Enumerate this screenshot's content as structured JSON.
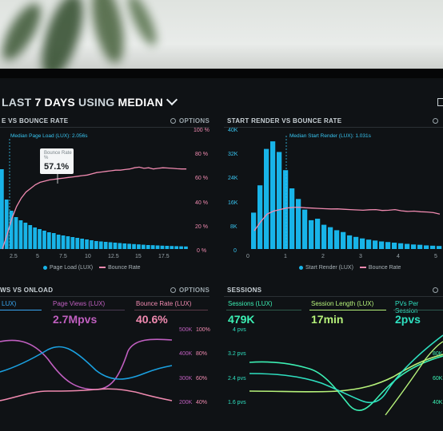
{
  "header": {
    "prefix": "LAST ",
    "days": "7 DAYS",
    "using": " USING ",
    "method": "MEDIAN"
  },
  "options_label": "OPTIONS",
  "panels": {
    "p1": {
      "title": "E VS BOUNCE RATE",
      "median_label": "Median Page Load (LUX): 2.056s",
      "tooltip": {
        "title": "Bounce Rate",
        "sub": "%",
        "value": "57.1%"
      },
      "legend_a": "Page Load (LUX)",
      "legend_b": "Bounce Rate",
      "right_ticks": [
        "100 %",
        "80 %",
        "60 %",
        "40 %",
        "20 %",
        "0 %"
      ],
      "x_ticks": [
        "2.5",
        "5",
        "7.5",
        "10",
        "12.5",
        "15",
        "17.5"
      ]
    },
    "p2": {
      "title": "START RENDER VS BOUNCE RATE",
      "median_label": "Median Start Render (LUX): 1.031s",
      "legend_a": "Start Render (LUX)",
      "legend_b": "Bounce Rate",
      "left_ticks": [
        "40K",
        "32K",
        "24K",
        "16K",
        "8K",
        "0"
      ],
      "x_ticks": [
        "0",
        "1",
        "2",
        "3",
        "4",
        "5"
      ]
    },
    "p3": {
      "title": "WS VS ONLOAD",
      "metrics": [
        {
          "label": "LUX)",
          "value": ""
        },
        {
          "label": "Page Views (LUX)",
          "value": "2.7Mpvs"
        },
        {
          "label": "Bounce Rate (LUX)",
          "value": "40.6%"
        }
      ],
      "left_ticks": [
        "500K",
        "400K",
        "300K",
        "200K"
      ],
      "right_ticks": [
        "100%",
        "80%",
        "60%",
        "40%"
      ]
    },
    "p4": {
      "title": "SESSIONS",
      "metrics": [
        {
          "label": "Sessions (LUX)",
          "value": "479K"
        },
        {
          "label": "Session Length (LUX)",
          "value": "17min"
        },
        {
          "label": "PVs Per Session",
          "value": "2pvs"
        }
      ],
      "left_ticks": [
        "4 pvs",
        "3.2 pvs",
        "2.4 pvs",
        "1.6 pvs"
      ],
      "right_ticks": [
        "80K",
        "60K",
        "40K"
      ]
    }
  },
  "colors": {
    "bar": "#18b4e8",
    "bounce": "#f08ab0",
    "purple": "#c05fc0",
    "green": "#3cf0b4",
    "lime": "#b6f27a",
    "teal": "#2ee0c0",
    "blue": "#1aa0e0"
  },
  "chart_data": [
    {
      "type": "bar",
      "title": "E VS BOUNCE RATE",
      "xlabel": "",
      "ylabel": "",
      "x_ticks": [
        2.5,
        5,
        7.5,
        10,
        12.5,
        15,
        17.5
      ],
      "series": [
        {
          "name": "Page Load (LUX)",
          "values": [
            100,
            62,
            48,
            40,
            36,
            33,
            30,
            27,
            25,
            23,
            21,
            20,
            18,
            17,
            16,
            15,
            14,
            13,
            12,
            11,
            10,
            9.5,
            9,
            8.5,
            8,
            7.5,
            7,
            6.6,
            6.2,
            5.8,
            5.4,
            5,
            4.8,
            4.5,
            4.2,
            4,
            3.8,
            3.6,
            3.4,
            3.2
          ]
        },
        {
          "name": "Bounce Rate",
          "values": [
            0,
            12,
            25,
            35,
            42,
            47,
            50,
            53,
            55,
            56,
            57,
            57.5,
            58,
            58.5,
            59,
            59.5,
            60,
            60.5,
            61,
            62,
            63,
            63.5,
            64,
            64.5,
            65,
            65,
            65.5,
            66,
            67,
            67.5,
            66.5,
            67,
            66,
            66.5,
            67,
            66.8,
            66.5,
            66.2,
            66,
            66
          ]
        }
      ],
      "ylim": [
        0,
        100
      ]
    },
    {
      "type": "bar",
      "title": "START RENDER VS BOUNCE RATE",
      "xlabel": "",
      "ylabel": "",
      "x_ticks": [
        0,
        1,
        2,
        3,
        4,
        5
      ],
      "ylim": [
        0,
        40000
      ],
      "series": [
        {
          "name": "Start Render (LUX)",
          "values": [
            12000,
            21000,
            33000,
            35500,
            32000,
            26000,
            20000,
            16500,
            13000,
            9500,
            10000,
            8000,
            7200,
            6200,
            5600,
            4500,
            4000,
            3500,
            3100,
            2800,
            2500,
            2300,
            2100,
            1900,
            1700,
            1500,
            1400,
            1200,
            1100,
            1000
          ]
        },
        {
          "name": "Bounce Rate",
          "values": [
            6000,
            9000,
            11500,
            12500,
            13000,
            13500,
            13700,
            13800,
            13600,
            13500,
            13400,
            13300,
            13200,
            13250,
            13100,
            13000,
            12900,
            12800,
            12950,
            13000,
            12700,
            12800,
            13000,
            12600,
            12400,
            12500,
            12300,
            12200,
            12000,
            11500
          ]
        }
      ]
    }
  ]
}
